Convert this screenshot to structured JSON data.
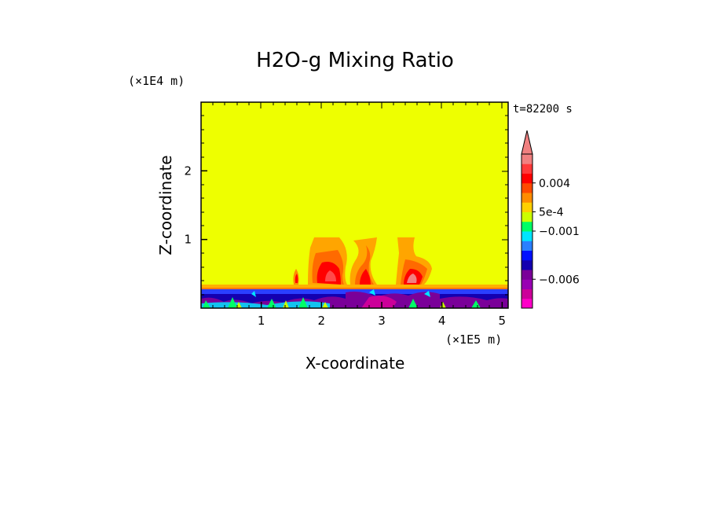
{
  "chart_data": {
    "type": "heatmap",
    "title": "H2O-g Mixing Ratio",
    "xlabel": "X-coordinate",
    "ylabel": "Z-coordinate",
    "x_unit": "(×1E5 m)",
    "y_unit": "(×1E4 m)",
    "time_label": "t=82200 s",
    "xlim": [
      0,
      5.1
    ],
    "ylim": [
      0,
      3.0
    ],
    "x_ticks": [
      "1",
      "2",
      "3",
      "4",
      "5"
    ],
    "y_ticks": [
      "1",
      "2"
    ],
    "colorbar": {
      "tick_labels": [
        "0.004",
        "5e-4",
        "−0.001",
        "−0.006"
      ],
      "colors": [
        "#ff00c8",
        "#cc0099",
        "#9900b3",
        "#7a0099",
        "#1400b0",
        "#0010ff",
        "#2a7fff",
        "#00e5ff",
        "#00ff66",
        "#ccff00",
        "#ffd000",
        "#ff8c00",
        "#ff4a00",
        "#ff0000",
        "#ff3a3a",
        "#f08080"
      ],
      "extend": "max"
    },
    "background_color": "#eeff00"
  }
}
